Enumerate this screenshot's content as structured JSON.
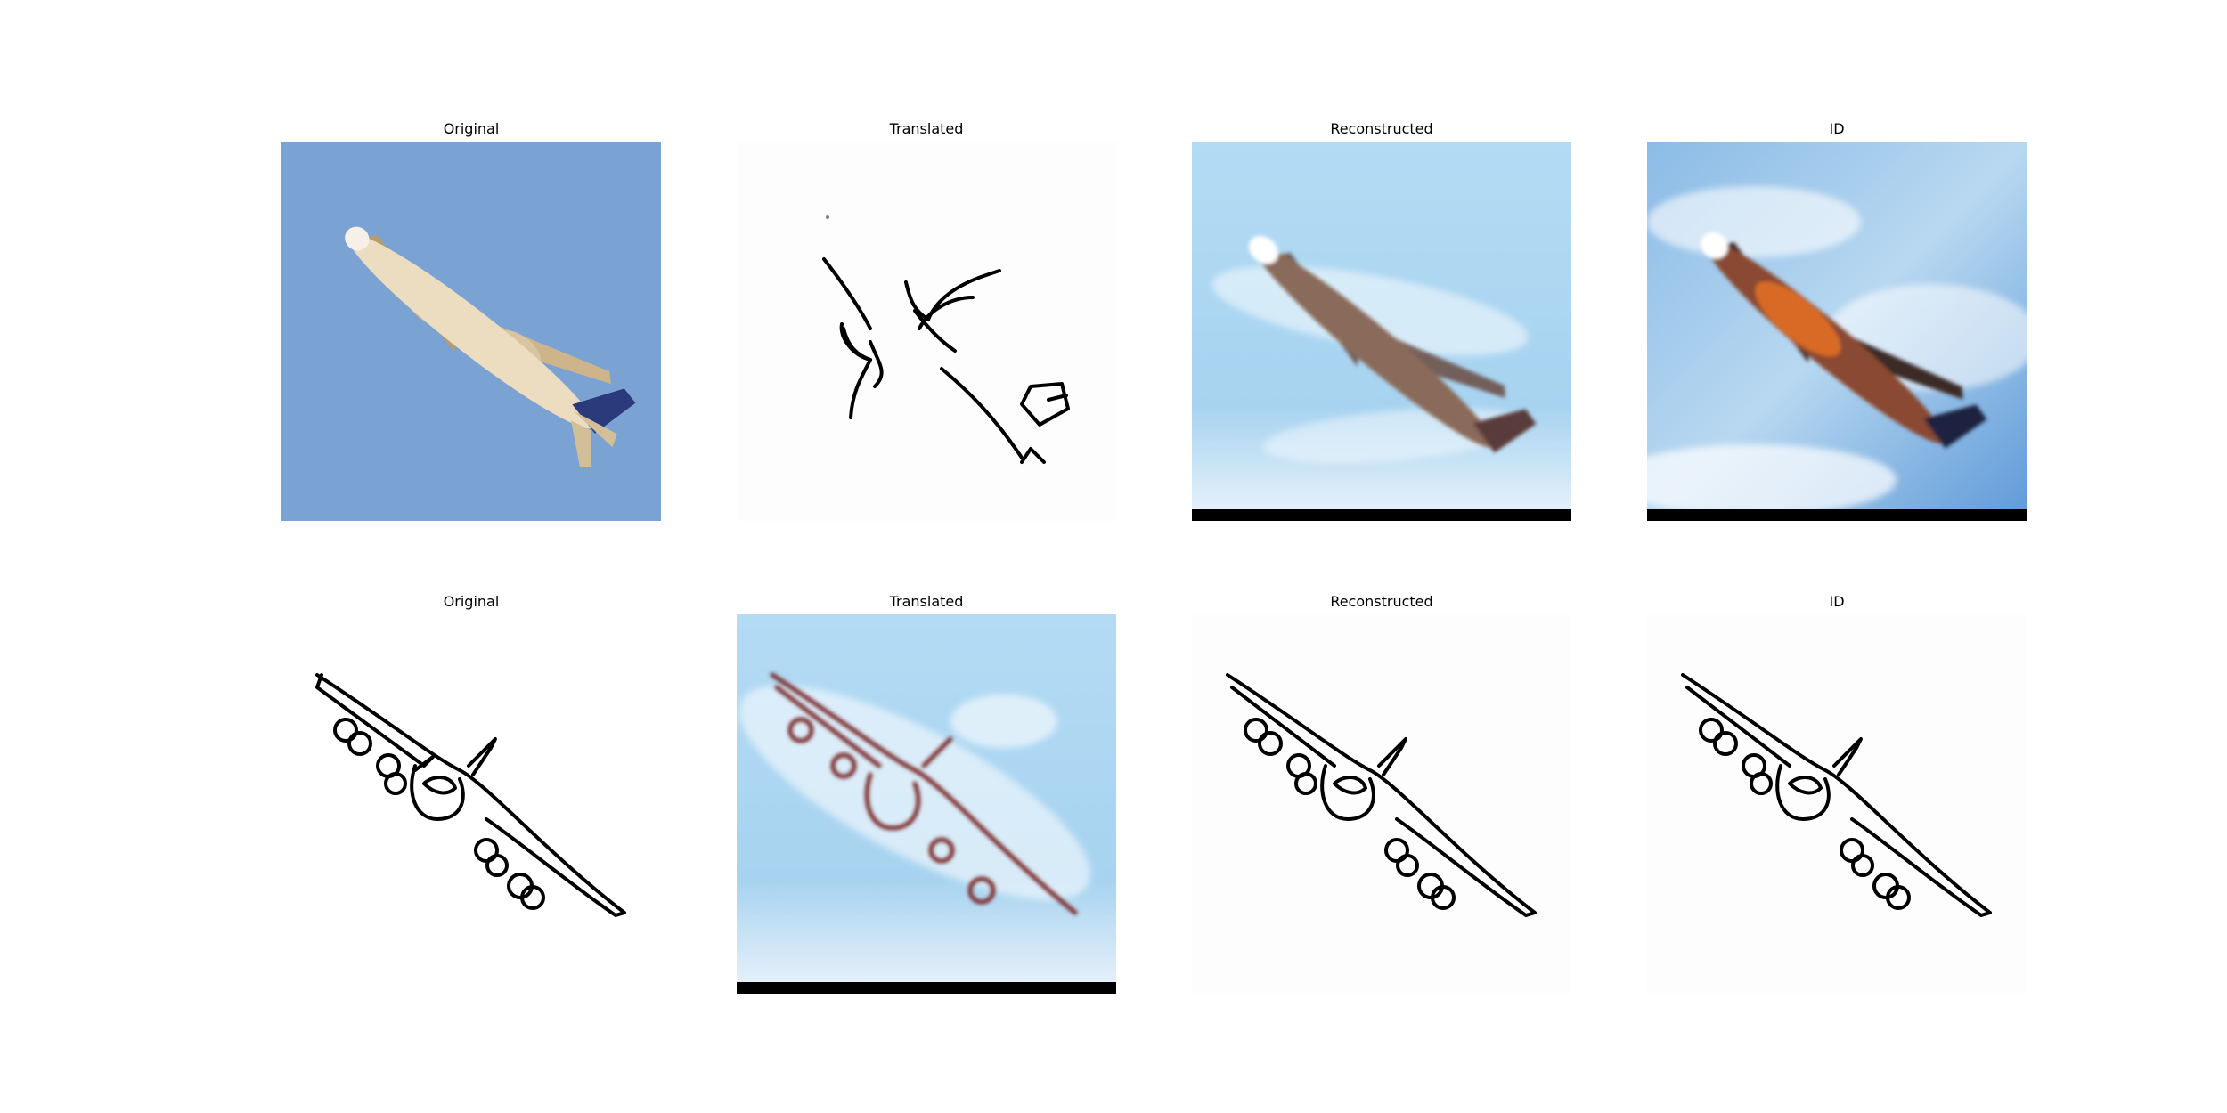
{
  "figure": {
    "rows": [
      {
        "panels": [
          {
            "title": "Original"
          },
          {
            "title": "Translated"
          },
          {
            "title": "Reconstructed"
          },
          {
            "title": "ID"
          }
        ]
      },
      {
        "panels": [
          {
            "title": "Original"
          },
          {
            "title": "Translated"
          },
          {
            "title": "Reconstructed"
          },
          {
            "title": "ID"
          }
        ]
      }
    ]
  },
  "colors": {
    "sky_photo": "#7aa3d4",
    "sky_generated": "#a9d4f0",
    "sketch_line": "#000000",
    "sketch_generated_line": "#7a2a2a",
    "fuselage": "#e9d7b5",
    "tail": "#2a3a7a"
  }
}
